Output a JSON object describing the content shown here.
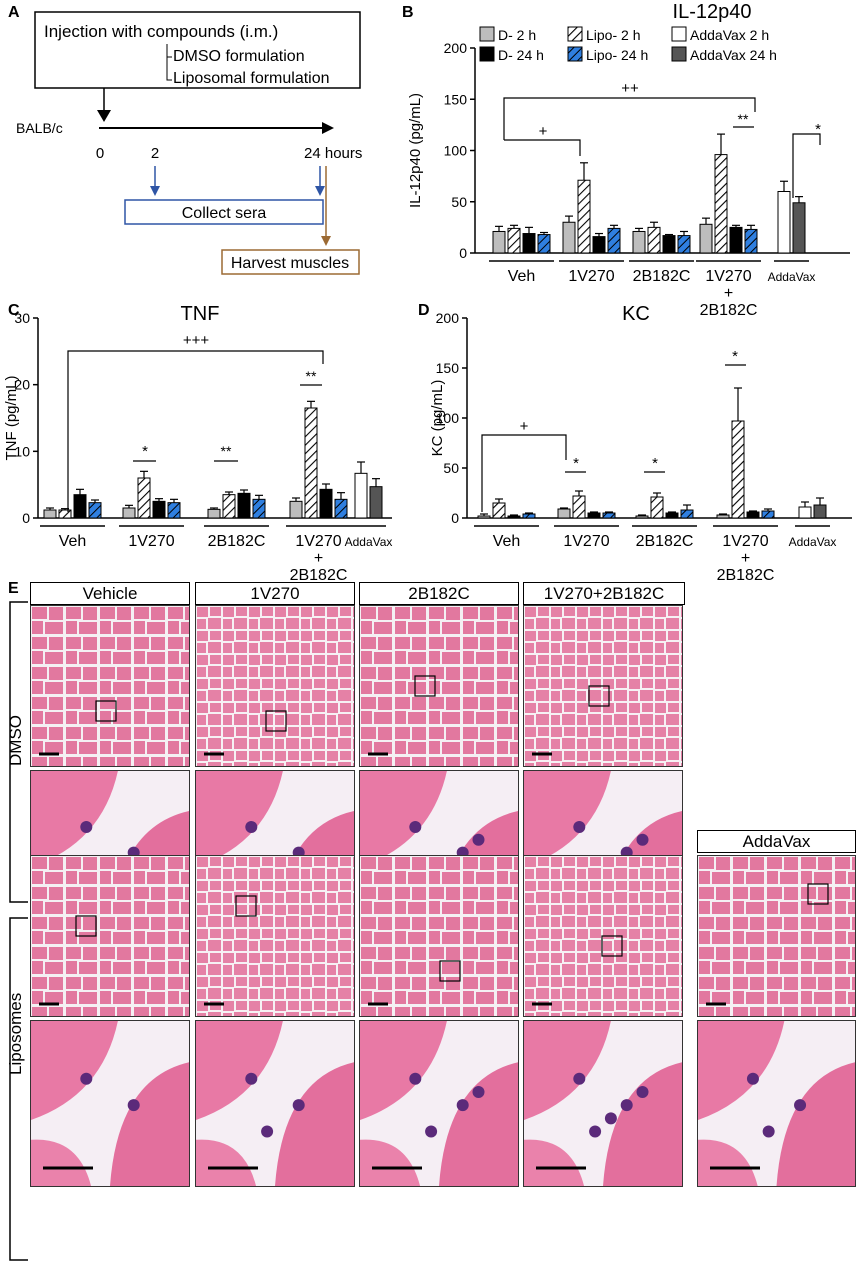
{
  "panel_letters": {
    "a": "A",
    "b": "B",
    "c": "C",
    "d": "D",
    "e": "E"
  },
  "panel_a": {
    "box_title": "Injection with compounds (i.m.)",
    "option_1": "DMSO formulation",
    "option_2": "Liposomal formulation",
    "mouse": "BALB/c",
    "t0": "0",
    "t2": "2",
    "t24": "24 hours",
    "collect": "Collect sera",
    "harvest": "Harvest muscles"
  },
  "chart_data": [
    {
      "type": "bar",
      "panel": "B",
      "title": "IL-12p40",
      "ylabel": "IL-12p40 (pg/mL)",
      "ylim": [
        0,
        200
      ],
      "yticks": [
        "0",
        "50",
        "100",
        "150",
        "200"
      ],
      "legend": [
        "D- 2 h",
        "D- 24 h",
        "Lipo- 2 h",
        "Lipo- 24 h",
        "AddaVax 2 h",
        "AddaVax 24 h"
      ],
      "groups": [
        "Veh",
        "1V270",
        "2B182C",
        "1V270\n+\n2B182C",
        "AddaVax"
      ],
      "series": [
        {
          "name": "D- 2 h",
          "values": [
            21,
            30,
            21,
            28,
            null
          ]
        },
        {
          "name": "Lipo- 2 h",
          "values": [
            24,
            71,
            25,
            96,
            null
          ]
        },
        {
          "name": "D- 24 h",
          "values": [
            19,
            16,
            17,
            25,
            null
          ]
        },
        {
          "name": "Lipo- 24 h",
          "values": [
            18,
            24,
            17,
            23,
            null
          ]
        },
        {
          "name": "AddaVax 2 h",
          "values": [
            null,
            null,
            null,
            null,
            60
          ]
        },
        {
          "name": "AddaVax 24 h",
          "values": [
            null,
            null,
            null,
            null,
            49
          ]
        }
      ],
      "errors": [
        [
          5,
          6,
          3,
          6,
          null
        ],
        [
          3,
          17,
          5,
          20,
          null
        ],
        [
          6,
          3,
          1,
          2,
          null
        ],
        [
          2,
          3,
          4,
          4,
          null
        ],
        [
          null,
          null,
          null,
          null,
          10
        ],
        [
          null,
          null,
          null,
          null,
          6
        ]
      ],
      "annotations": [
        "++",
        "+",
        "**",
        "*"
      ]
    },
    {
      "type": "bar",
      "panel": "C",
      "title": "TNF",
      "ylabel": "TNF (pg/mL)",
      "ylim": [
        0,
        30
      ],
      "yticks": [
        "0",
        "10",
        "20",
        "30"
      ],
      "groups": [
        "Veh",
        "1V270",
        "2B182C",
        "1V270\n+\n2B182C",
        "AddaVax"
      ],
      "series": [
        {
          "name": "D- 2 h",
          "values": [
            1.2,
            1.5,
            1.3,
            2.5,
            null
          ]
        },
        {
          "name": "Lipo- 2 h",
          "values": [
            1.2,
            6.0,
            3.5,
            16.5,
            null
          ]
        },
        {
          "name": "D- 24 h",
          "values": [
            3.5,
            2.5,
            3.7,
            4.3,
            null
          ]
        },
        {
          "name": "Lipo- 24 h",
          "values": [
            2.3,
            2.3,
            2.8,
            2.8,
            null
          ]
        },
        {
          "name": "AddaVax 2 h",
          "values": [
            null,
            null,
            null,
            null,
            6.7
          ]
        },
        {
          "name": "AddaVax 24 h",
          "values": [
            null,
            null,
            null,
            null,
            4.7
          ]
        }
      ],
      "errors": [
        [
          0.3,
          0.4,
          0.2,
          0.5,
          null
        ],
        [
          0.2,
          1.0,
          0.4,
          1.0,
          null
        ],
        [
          0.8,
          0.4,
          0.5,
          0.8,
          null
        ],
        [
          0.4,
          0.5,
          0.6,
          1.0,
          null
        ],
        [
          null,
          null,
          null,
          null,
          1.7
        ],
        [
          null,
          null,
          null,
          null,
          1.2
        ]
      ],
      "annotations": [
        "+++",
        "*",
        "**",
        "**"
      ]
    },
    {
      "type": "bar",
      "panel": "D",
      "title": "KC",
      "ylabel": "KC (pg/mL)",
      "ylim": [
        0,
        200
      ],
      "yticks": [
        "0",
        "50",
        "100",
        "150",
        "200"
      ],
      "groups": [
        "Veh",
        "1V270",
        "2B182C",
        "1V270\n+\n2B182C",
        "AddaVax"
      ],
      "series": [
        {
          "name": "D- 2 h",
          "values": [
            2,
            9,
            2,
            3,
            null
          ]
        },
        {
          "name": "Lipo- 2 h",
          "values": [
            15,
            22,
            21,
            97,
            null
          ]
        },
        {
          "name": "D- 24 h",
          "values": [
            2,
            5,
            5,
            6,
            null
          ]
        },
        {
          "name": "Lipo- 24 h",
          "values": [
            4,
            5,
            8,
            7,
            null
          ]
        },
        {
          "name": "AddaVax 2 h",
          "values": [
            null,
            null,
            null,
            null,
            11
          ]
        },
        {
          "name": "AddaVax 24 h",
          "values": [
            null,
            null,
            null,
            null,
            13
          ]
        }
      ],
      "errors": [
        [
          2,
          1,
          1,
          1,
          null
        ],
        [
          4,
          5,
          4,
          33,
          null
        ],
        [
          1,
          1,
          1,
          1,
          null
        ],
        [
          1,
          1,
          5,
          2,
          null
        ],
        [
          null,
          null,
          null,
          null,
          5
        ],
        [
          null,
          null,
          null,
          null,
          7
        ]
      ],
      "annotations": [
        "+",
        "*",
        "*",
        "*"
      ]
    }
  ],
  "panel_e": {
    "columns": [
      "Vehicle",
      "1V270",
      "2B182C",
      "1V270+2B182C"
    ],
    "addavax": "AddaVax",
    "rows": [
      "DMSO",
      "Liposomes"
    ]
  }
}
